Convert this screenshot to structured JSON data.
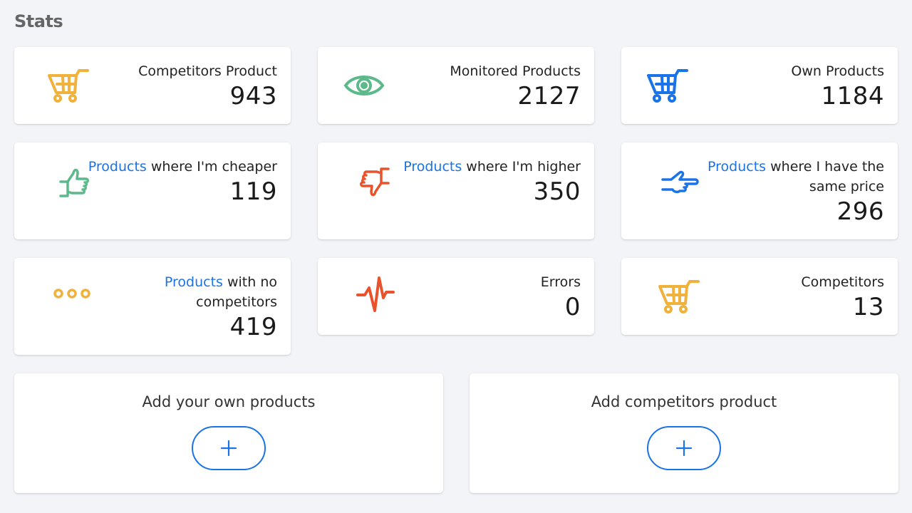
{
  "page": {
    "title": "Stats"
  },
  "stats": [
    {
      "icon": "cart-icon",
      "icon_color": "#f0b23b",
      "link": "",
      "label": "Competitors Product",
      "value": "943"
    },
    {
      "icon": "eye-icon",
      "icon_color": "#5bb98a",
      "link": "",
      "label": "Monitored Products",
      "value": "2127"
    },
    {
      "icon": "cart-icon",
      "icon_color": "#1a73e8",
      "link": "",
      "label": "Own Products",
      "value": "1184"
    },
    {
      "icon": "thumbs-up-icon",
      "icon_color": "#5bb98a",
      "link": "Products",
      "label": " where I'm cheaper",
      "value": "119"
    },
    {
      "icon": "thumbs-down-icon",
      "icon_color": "#e8532b",
      "link": "Products",
      "label": " where I'm higher",
      "value": "350"
    },
    {
      "icon": "pointing-hand-icon",
      "icon_color": "#1a73e8",
      "link": "Products",
      "label": " where I have the same price",
      "value": "296"
    },
    {
      "icon": "more-dots-icon",
      "icon_color": "#f0b23b",
      "link": "Products",
      "label": " with no competitors",
      "value": "419"
    },
    {
      "icon": "pulse-icon",
      "icon_color": "#e8532b",
      "link": "",
      "label": "Errors",
      "value": "0"
    },
    {
      "icon": "cart-icon",
      "icon_color": "#f0b23b",
      "link": "",
      "label": "Competitors",
      "value": "13"
    }
  ],
  "actions": {
    "own": {
      "title": "Add your own products",
      "button": "+"
    },
    "competitors": {
      "title": "Add competitors product",
      "button": "+"
    }
  },
  "colors": {
    "accent": "#1a73e8",
    "background": "#f3f4f8"
  }
}
